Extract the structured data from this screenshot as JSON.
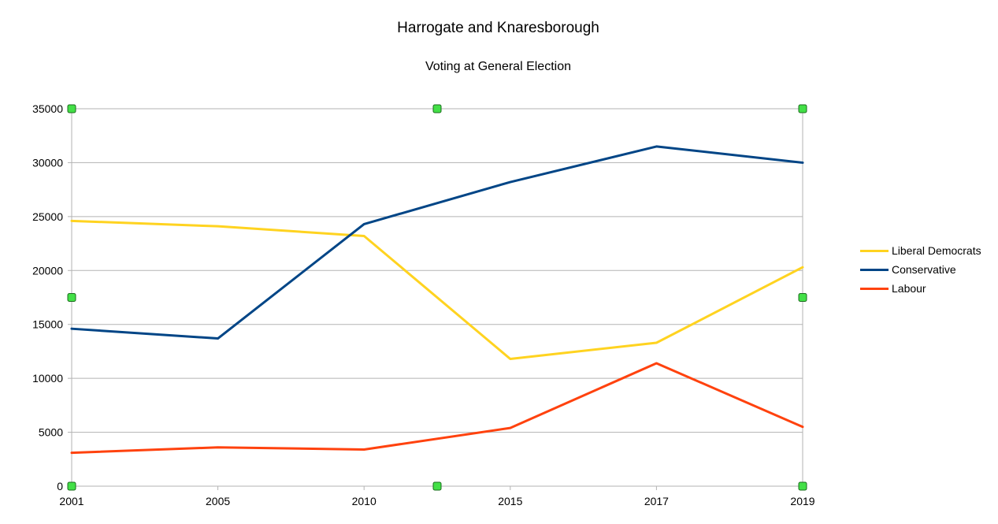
{
  "chart_data": {
    "type": "line",
    "title": "Harrogate and Knaresborough",
    "subtitle": "Voting at General Election",
    "categories": [
      "2001",
      "2005",
      "2010",
      "2015",
      "2017",
      "2019"
    ],
    "series": [
      {
        "name": "Liberal Democrats",
        "color": "#ffd320",
        "values": [
          24600,
          24100,
          23200,
          11800,
          13300,
          20300
        ]
      },
      {
        "name": "Conservative",
        "color": "#004586",
        "values": [
          14600,
          13700,
          24300,
          28200,
          31500,
          30000
        ]
      },
      {
        "name": "Labour",
        "color": "#ff420e",
        "values": [
          3100,
          3600,
          3400,
          5400,
          11400,
          5500
        ]
      }
    ],
    "ylim": [
      0,
      35000
    ],
    "yticks": [
      0,
      5000,
      10000,
      15000,
      20000,
      25000,
      30000,
      35000
    ],
    "grid": true,
    "legend_position": "right"
  }
}
